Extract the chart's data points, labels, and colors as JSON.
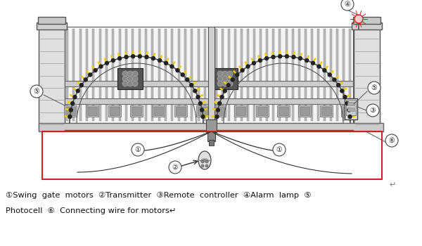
{
  "bg_color": "#ffffff",
  "gate_fill": "#f0f0f0",
  "gate_ec": "#555555",
  "bar_fill": "#aaaaaa",
  "bar_ec": "#777777",
  "pillar_fill": "#e0e0e0",
  "pillar_ec": "#555555",
  "ground_fill": "#cccccc",
  "ground_ec": "#666666",
  "red_ec": "#cc2222",
  "arch_color": "#555555",
  "spike_color": "#eecc00",
  "wire_color": "#333333",
  "label_ec": "#333333",
  "lamp_color": "#cc2222",
  "legend1": "①Swing  gate  motors  ②Transmitter  ③Remote  controller  ④Alarm  lamp  ⑤",
  "legend2": "Photocell  ⑥  Connecting wire for motors"
}
